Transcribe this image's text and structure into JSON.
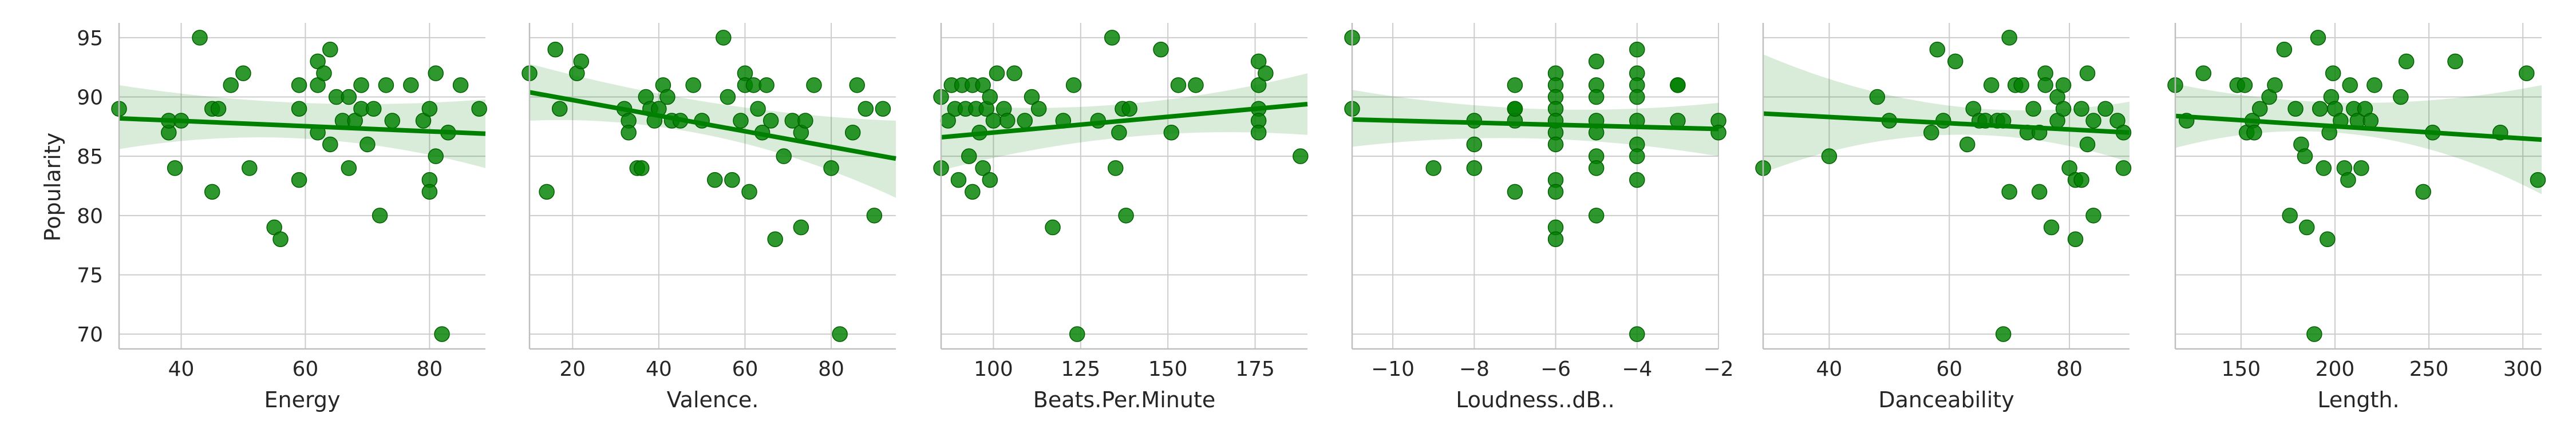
{
  "figure": {
    "ylabel": "Popularity",
    "yticks": [
      70,
      75,
      80,
      85,
      90,
      95
    ],
    "ylim": [
      68.75,
      96.25
    ],
    "colors": {
      "scatter": "#008000",
      "line": "#008000",
      "band": "#008000",
      "grid": "#cccccc",
      "spine": "#bfbfbf"
    }
  },
  "chart_data": [
    {
      "type": "scatter",
      "xlabel": "Energy",
      "xlim": [
        30,
        89
      ],
      "xticks": [
        40,
        60,
        80
      ],
      "regression": {
        "y_start": 88.2,
        "y_end": 86.9,
        "band_start": [
          85.6,
          91.0
        ],
        "band_end": [
          84.0,
          89.8
        ],
        "band_mid": [
          86.5,
          89.5
        ]
      },
      "points": [
        [
          30,
          89
        ],
        [
          38,
          87
        ],
        [
          38,
          88
        ],
        [
          39,
          84
        ],
        [
          40,
          88
        ],
        [
          43,
          95
        ],
        [
          45,
          82
        ],
        [
          45,
          89
        ],
        [
          46,
          89
        ],
        [
          48,
          91
        ],
        [
          50,
          92
        ],
        [
          51,
          84
        ],
        [
          55,
          79
        ],
        [
          56,
          78
        ],
        [
          59,
          83
        ],
        [
          59,
          89
        ],
        [
          59,
          91
        ],
        [
          62,
          93
        ],
        [
          62,
          91
        ],
        [
          62,
          87
        ],
        [
          63,
          92
        ],
        [
          64,
          94
        ],
        [
          64,
          86
        ],
        [
          65,
          90
        ],
        [
          66,
          88
        ],
        [
          67,
          90
        ],
        [
          67,
          84
        ],
        [
          68,
          88
        ],
        [
          69,
          91
        ],
        [
          69,
          89
        ],
        [
          70,
          86
        ],
        [
          71,
          89
        ],
        [
          72,
          80
        ],
        [
          73,
          91
        ],
        [
          74,
          88
        ],
        [
          77,
          91
        ],
        [
          79,
          88
        ],
        [
          80,
          89
        ],
        [
          80,
          83
        ],
        [
          80,
          82
        ],
        [
          81,
          85
        ],
        [
          81,
          92
        ],
        [
          82,
          70
        ],
        [
          83,
          87
        ],
        [
          85,
          91
        ],
        [
          88,
          89
        ]
      ]
    },
    {
      "type": "scatter",
      "xlabel": "Valence.",
      "xlim": [
        10,
        95
      ],
      "xticks": [
        20,
        40,
        60,
        80
      ],
      "regression": {
        "y_start": 90.4,
        "y_end": 84.8,
        "band_start": [
          88.0,
          92.8
        ],
        "band_end": [
          81.5,
          88.0
        ],
        "band_mid": [
          86.7,
          89.5
        ]
      },
      "points": [
        [
          10,
          92
        ],
        [
          14,
          82
        ],
        [
          16,
          94
        ],
        [
          17,
          89
        ],
        [
          21,
          92
        ],
        [
          22,
          93
        ],
        [
          32,
          89
        ],
        [
          33,
          88
        ],
        [
          33,
          87
        ],
        [
          35,
          84
        ],
        [
          36,
          84
        ],
        [
          37,
          90
        ],
        [
          38,
          89
        ],
        [
          39,
          88
        ],
        [
          40,
          89
        ],
        [
          41,
          91
        ],
        [
          42,
          90
        ],
        [
          43,
          88
        ],
        [
          45,
          88
        ],
        [
          48,
          91
        ],
        [
          50,
          88
        ],
        [
          53,
          83
        ],
        [
          55,
          95
        ],
        [
          56,
          90
        ],
        [
          57,
          83
        ],
        [
          59,
          88
        ],
        [
          60,
          92
        ],
        [
          60,
          91
        ],
        [
          61,
          82
        ],
        [
          62,
          91
        ],
        [
          63,
          89
        ],
        [
          64,
          87
        ],
        [
          65,
          91
        ],
        [
          66,
          88
        ],
        [
          67,
          78
        ],
        [
          69,
          85
        ],
        [
          71,
          88
        ],
        [
          73,
          79
        ],
        [
          73,
          87
        ],
        [
          74,
          88
        ],
        [
          76,
          91
        ],
        [
          80,
          84
        ],
        [
          82,
          70
        ],
        [
          85,
          87
        ],
        [
          86,
          91
        ],
        [
          88,
          89
        ],
        [
          90,
          80
        ],
        [
          92,
          89
        ]
      ]
    },
    {
      "type": "scatter",
      "xlabel": "Beats.Per.Minute",
      "xlim": [
        85,
        190
      ],
      "xticks": [
        100,
        125,
        150,
        175
      ],
      "regression": {
        "y_start": 86.6,
        "y_end": 89.4,
        "band_start": [
          83.8,
          89.4
        ],
        "band_end": [
          86.8,
          92.0
        ],
        "band_mid": [
          86.6,
          89.4
        ]
      },
      "points": [
        [
          85,
          84
        ],
        [
          85,
          90
        ],
        [
          87,
          88
        ],
        [
          88,
          91
        ],
        [
          89,
          89
        ],
        [
          90,
          83
        ],
        [
          91,
          91
        ],
        [
          92,
          89
        ],
        [
          93,
          85
        ],
        [
          94,
          82
        ],
        [
          94,
          91
        ],
        [
          95,
          89
        ],
        [
          96,
          87
        ],
        [
          97,
          91
        ],
        [
          97,
          84
        ],
        [
          98,
          89
        ],
        [
          99,
          90
        ],
        [
          99,
          83
        ],
        [
          100,
          88
        ],
        [
          101,
          92
        ],
        [
          103,
          89
        ],
        [
          104,
          88
        ],
        [
          106,
          92
        ],
        [
          109,
          88
        ],
        [
          111,
          90
        ],
        [
          113,
          89
        ],
        [
          117,
          79
        ],
        [
          120,
          88
        ],
        [
          123,
          91
        ],
        [
          124,
          70
        ],
        [
          130,
          88
        ],
        [
          134,
          95
        ],
        [
          135,
          84
        ],
        [
          136,
          87
        ],
        [
          137,
          89
        ],
        [
          138,
          80
        ],
        [
          139,
          89
        ],
        [
          148,
          94
        ],
        [
          151,
          87
        ],
        [
          153,
          91
        ],
        [
          158,
          91
        ],
        [
          176,
          89
        ],
        [
          176,
          93
        ],
        [
          176,
          91
        ],
        [
          176,
          88
        ],
        [
          176,
          87
        ],
        [
          178,
          92
        ],
        [
          188,
          85
        ]
      ]
    },
    {
      "type": "scatter",
      "xlabel": "Loudness..dB..",
      "xlim": [
        -11,
        -2
      ],
      "xticks": [
        -10,
        -8,
        -6,
        -4,
        -2
      ],
      "regression": {
        "y_start": 88.1,
        "y_end": 87.3,
        "band_start": [
          85.8,
          90.6
        ],
        "band_end": [
          85.0,
          89.5
        ],
        "band_mid": [
          86.5,
          89.0
        ]
      },
      "points": [
        [
          -11,
          95
        ],
        [
          -11,
          89
        ],
        [
          -9,
          84
        ],
        [
          -8,
          88
        ],
        [
          -8,
          84
        ],
        [
          -8,
          86
        ],
        [
          -7,
          91
        ],
        [
          -7,
          89
        ],
        [
          -7,
          88
        ],
        [
          -7,
          89
        ],
        [
          -7,
          82
        ],
        [
          -6,
          92
        ],
        [
          -6,
          91
        ],
        [
          -6,
          90
        ],
        [
          -6,
          89
        ],
        [
          -6,
          88
        ],
        [
          -6,
          87
        ],
        [
          -6,
          86
        ],
        [
          -6,
          83
        ],
        [
          -6,
          82
        ],
        [
          -6,
          79
        ],
        [
          -6,
          78
        ],
        [
          -5,
          93
        ],
        [
          -5,
          91
        ],
        [
          -5,
          90
        ],
        [
          -5,
          88
        ],
        [
          -5,
          87
        ],
        [
          -5,
          85
        ],
        [
          -5,
          84
        ],
        [
          -5,
          80
        ],
        [
          -4,
          94
        ],
        [
          -4,
          92
        ],
        [
          -4,
          91
        ],
        [
          -4,
          90
        ],
        [
          -4,
          88
        ],
        [
          -4,
          86
        ],
        [
          -4,
          85
        ],
        [
          -4,
          83
        ],
        [
          -4,
          70
        ],
        [
          -3,
          91
        ],
        [
          -3,
          91
        ],
        [
          -3,
          88
        ],
        [
          -2,
          88
        ],
        [
          -2,
          87
        ]
      ]
    },
    {
      "type": "scatter",
      "xlabel": "Danceability",
      "xlim": [
        29,
        90
      ],
      "xticks": [
        40,
        60,
        80
      ],
      "regression": {
        "y_start": 88.6,
        "y_end": 87.0,
        "band_start": [
          83.6,
          93.6
        ],
        "band_end": [
          84.5,
          89.6
        ],
        "band_mid": [
          86.8,
          89.3
        ]
      },
      "points": [
        [
          29,
          84
        ],
        [
          40,
          85
        ],
        [
          48,
          90
        ],
        [
          50,
          88
        ],
        [
          57,
          87
        ],
        [
          58,
          94
        ],
        [
          59,
          88
        ],
        [
          61,
          93
        ],
        [
          63,
          86
        ],
        [
          64,
          89
        ],
        [
          65,
          88
        ],
        [
          66,
          88
        ],
        [
          67,
          91
        ],
        [
          68,
          88
        ],
        [
          69,
          70
        ],
        [
          69,
          88
        ],
        [
          70,
          95
        ],
        [
          70,
          82
        ],
        [
          71,
          91
        ],
        [
          72,
          91
        ],
        [
          73,
          87
        ],
        [
          74,
          89
        ],
        [
          75,
          87
        ],
        [
          75,
          82
        ],
        [
          76,
          92
        ],
        [
          76,
          91
        ],
        [
          77,
          79
        ],
        [
          78,
          88
        ],
        [
          78,
          90
        ],
        [
          79,
          89
        ],
        [
          79,
          91
        ],
        [
          80,
          84
        ],
        [
          81,
          83
        ],
        [
          81,
          78
        ],
        [
          82,
          83
        ],
        [
          82,
          89
        ],
        [
          83,
          86
        ],
        [
          83,
          92
        ],
        [
          84,
          80
        ],
        [
          84,
          88
        ],
        [
          86,
          89
        ],
        [
          88,
          88
        ],
        [
          89,
          84
        ],
        [
          89,
          87
        ]
      ]
    },
    {
      "type": "scatter",
      "xlabel": "Length.",
      "xlim": [
        115,
        310
      ],
      "xticks": [
        150,
        200,
        250,
        300
      ],
      "regression": {
        "y_start": 88.4,
        "y_end": 86.4,
        "band_start": [
          85.7,
          91.1
        ],
        "band_end": [
          81.8,
          91.0
        ],
        "band_mid": [
          86.8,
          89.5
        ]
      },
      "points": [
        [
          115,
          91
        ],
        [
          121,
          88
        ],
        [
          130,
          92
        ],
        [
          148,
          91
        ],
        [
          152,
          91
        ],
        [
          153,
          87
        ],
        [
          156,
          88
        ],
        [
          157,
          87
        ],
        [
          160,
          89
        ],
        [
          165,
          90
        ],
        [
          168,
          91
        ],
        [
          173,
          94
        ],
        [
          176,
          80
        ],
        [
          179,
          89
        ],
        [
          182,
          86
        ],
        [
          184,
          85
        ],
        [
          185,
          79
        ],
        [
          189,
          70
        ],
        [
          191,
          95
        ],
        [
          192,
          89
        ],
        [
          194,
          84
        ],
        [
          196,
          78
        ],
        [
          197,
          87
        ],
        [
          198,
          90
        ],
        [
          199,
          92
        ],
        [
          200,
          89
        ],
        [
          203,
          88
        ],
        [
          205,
          84
        ],
        [
          207,
          83
        ],
        [
          208,
          91
        ],
        [
          210,
          89
        ],
        [
          212,
          88
        ],
        [
          214,
          84
        ],
        [
          216,
          89
        ],
        [
          219,
          88
        ],
        [
          221,
          91
        ],
        [
          235,
          90
        ],
        [
          238,
          93
        ],
        [
          247,
          82
        ],
        [
          252,
          87
        ],
        [
          264,
          93
        ],
        [
          288,
          87
        ],
        [
          302,
          92
        ],
        [
          308,
          83
        ]
      ]
    }
  ]
}
